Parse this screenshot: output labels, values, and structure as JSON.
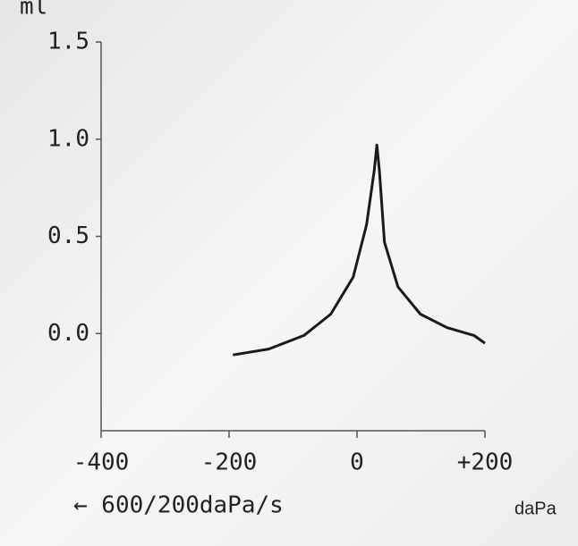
{
  "chart_data": {
    "type": "line",
    "y_label": "ml",
    "annotation": "← 600/200daPa/s",
    "x_unit": "daPa",
    "x": [
      -194,
      -138,
      -83,
      -41,
      -6,
      15,
      27,
      31,
      35,
      43,
      64,
      99,
      141,
      183,
      200
    ],
    "values": [
      -0.11,
      -0.08,
      -0.01,
      0.1,
      0.29,
      0.56,
      0.84,
      0.97,
      0.84,
      0.47,
      0.24,
      0.1,
      0.03,
      -0.01,
      -0.05
    ],
    "color": "#1a1a1a",
    "xlim": [
      -400,
      200
    ],
    "xticks": [
      -400,
      -200,
      0,
      {
        "value": 200,
        "label": "+200"
      }
    ],
    "ylim": [
      -0.5,
      1.5
    ],
    "yticks": [
      {
        "value": 0,
        "label": "0.0"
      },
      0.5,
      {
        "value": 1,
        "label": "1.0"
      },
      1.5
    ],
    "grid": false
  }
}
